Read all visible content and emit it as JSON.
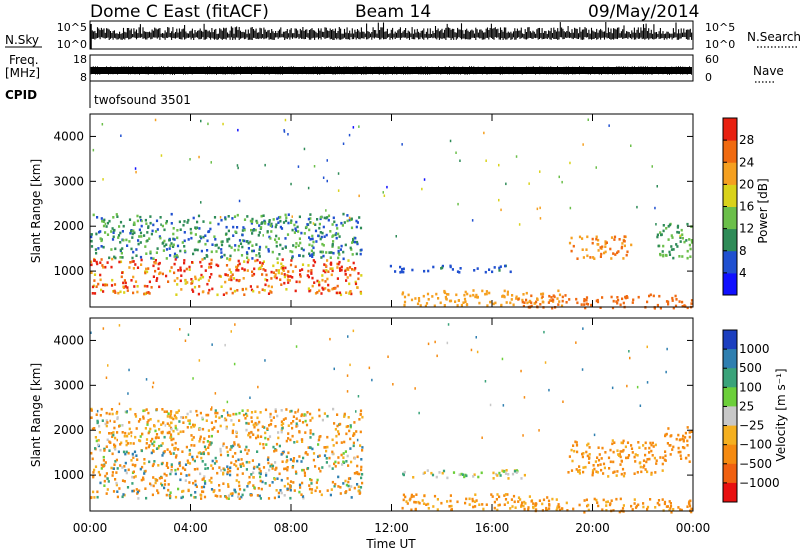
{
  "header": {
    "title": "Dome C East (fitACF)",
    "beam": "Beam 14",
    "date": "09/May/2014"
  },
  "strips": {
    "nsky_label": "N.Sky",
    "nsky_ticks": [
      "10^5",
      "10^0"
    ],
    "nsearch_label": "N.Search",
    "nsearch_ticks": [
      "10^5",
      "10^0"
    ],
    "freq_label": "Freq.",
    "freq_unit": "[MHz]",
    "freq_ticks": [
      "18",
      "8"
    ],
    "nave_label": "Nave",
    "nave_ticks": [
      "60",
      "0"
    ],
    "cpid_label": "CPID",
    "cpid_value": "twofsound 3501"
  },
  "x_axis": {
    "label": "Time UT",
    "ticks": [
      "00:00",
      "04:00",
      "08:00",
      "12:00",
      "16:00",
      "20:00",
      "00:00"
    ]
  },
  "y_axis_label": "Slant Range [km]",
  "y_ticks": [
    "1000",
    "2000",
    "3000",
    "4000"
  ],
  "power_scale": {
    "label": "Power [dB]",
    "ticks": [
      "4",
      "8",
      "12",
      "16",
      "20",
      "24",
      "28"
    ],
    "colors": [
      "#1010ff",
      "#2050d0",
      "#2e8b57",
      "#6bbf4a",
      "#d9d21a",
      "#f5a020",
      "#f06a10",
      "#e82010"
    ]
  },
  "velocity_scale": {
    "label": "Velocity [m s⁻¹]",
    "ticks": [
      "1000",
      "500",
      "100",
      "25",
      "−25",
      "−100",
      "−500",
      "−1000"
    ],
    "colors": [
      "#1c3fbf",
      "#2f7fb0",
      "#3aa37a",
      "#6ccf3a",
      "#c8c8c8",
      "#f5b020",
      "#f58a10",
      "#f06010",
      "#e81010"
    ]
  },
  "chart_data": [
    {
      "type": "heatmap",
      "title": "Power",
      "xlabel": "",
      "ylabel": "Slant Range [km]",
      "xlim": [
        0,
        24
      ],
      "ylim": [
        200,
        4500
      ],
      "colorbar": {
        "label": "Power [dB]",
        "range": [
          0,
          32
        ]
      },
      "regions": [
        {
          "t0": 0.0,
          "t1": 10.8,
          "r0": 500,
          "r1": 1300,
          "value": 26,
          "spread": 1500
        },
        {
          "t0": 0.0,
          "t1": 10.8,
          "r0": 1300,
          "r1": 2300,
          "value": 10,
          "spread": 800
        },
        {
          "t0": 11.9,
          "t1": 16.8,
          "r0": 1000,
          "r1": 1150,
          "value": 7,
          "spread": 200
        },
        {
          "t0": 12.3,
          "t1": 18.8,
          "r0": 250,
          "r1": 600,
          "value": 22,
          "spread": 300
        },
        {
          "t0": 17.0,
          "t1": 24.0,
          "r0": 200,
          "r1": 500,
          "value": 26,
          "spread": 300
        },
        {
          "t0": 19.0,
          "t1": 21.5,
          "r0": 1300,
          "r1": 1800,
          "value": 24,
          "spread": 400
        },
        {
          "t0": 22.5,
          "t1": 24.0,
          "r0": 1300,
          "r1": 2100,
          "value": 12,
          "spread": 400
        }
      ]
    },
    {
      "type": "heatmap",
      "title": "Velocity",
      "xlabel": "Time UT",
      "ylabel": "Slant Range [km]",
      "xlim": [
        0,
        24
      ],
      "ylim": [
        200,
        4500
      ],
      "colorbar": {
        "label": "Velocity [m s⁻¹]",
        "range": [
          -1000,
          1000
        ]
      },
      "regions": [
        {
          "t0": 0.0,
          "t1": 10.8,
          "r0": 500,
          "r1": 1700,
          "value": -110,
          "spread": 1200
        },
        {
          "t0": 0.0,
          "t1": 10.8,
          "r0": 1700,
          "r1": 2500,
          "value": -100,
          "spread": 600
        },
        {
          "t0": 12.3,
          "t1": 17.5,
          "r0": 950,
          "r1": 1150,
          "value": 0,
          "spread": 150
        },
        {
          "t0": 12.3,
          "t1": 18.8,
          "r0": 250,
          "r1": 600,
          "value": -120,
          "spread": 300
        },
        {
          "t0": 17.0,
          "t1": 24.0,
          "r0": 200,
          "r1": 500,
          "value": -140,
          "spread": 300
        },
        {
          "t0": 19.0,
          "t1": 22.8,
          "r0": 1000,
          "r1": 1800,
          "value": -130,
          "spread": 400
        },
        {
          "t0": 22.8,
          "t1": 24.0,
          "r0": 1300,
          "r1": 2100,
          "value": -300,
          "spread": 400
        }
      ]
    }
  ]
}
